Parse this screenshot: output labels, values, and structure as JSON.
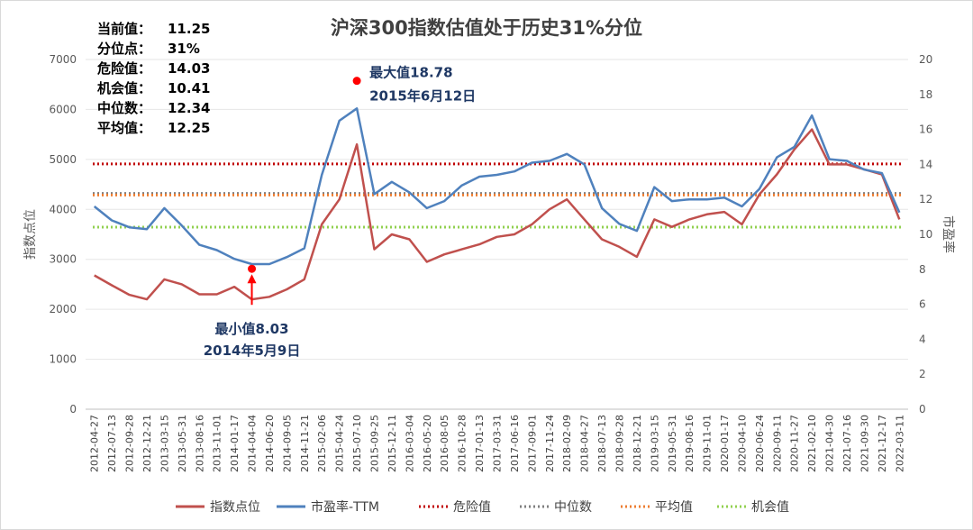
{
  "chart_data": {
    "type": "line",
    "title": "沪深300指数估值处于历史31%分位",
    "ylabel_left": "指数点位",
    "ylabel_right": "市盈率",
    "ylim_left": [
      0,
      7000
    ],
    "ylim_right": [
      0,
      20
    ],
    "yticks_left": [
      "0",
      "1000",
      "2000",
      "3000",
      "4000",
      "5000",
      "6000",
      "7000"
    ],
    "yticks_right": [
      "0",
      "2",
      "4",
      "6",
      "8",
      "10",
      "12",
      "14",
      "16",
      "18",
      "20"
    ],
    "xticks": [
      "2012-04-27",
      "2012-07-13",
      "2012-09-28",
      "2012-12-21",
      "2013-03-15",
      "2013-05-31",
      "2013-08-16",
      "2013-11-01",
      "2014-01-17",
      "2014-04-04",
      "2014-06-20",
      "2014-09-05",
      "2014-11-21",
      "2015-02-06",
      "2015-04-24",
      "2015-07-10",
      "2015-09-25",
      "2015-12-11",
      "2016-03-04",
      "2016-05-20",
      "2016-08-05",
      "2016-10-28",
      "2017-01-13",
      "2017-03-31",
      "2017-06-16",
      "2017-09-01",
      "2017-11-24",
      "2018-02-09",
      "2018-04-27",
      "2018-07-13",
      "2018-09-28",
      "2018-12-21",
      "2019-03-15",
      "2019-05-31",
      "2019-08-16",
      "2019-11-01",
      "2020-01-17",
      "2020-04-10",
      "2020-06-24",
      "2020-09-11",
      "2020-11-27",
      "2021-02-10",
      "2021-04-30",
      "2021-07-16",
      "2021-09-30",
      "2021-12-17",
      "2022-03-11"
    ],
    "stats": [
      {
        "label": "当前值：",
        "value": "11.25"
      },
      {
        "label": "分位点：",
        "value": "31%"
      },
      {
        "label": "危险值：",
        "value": "14.03"
      },
      {
        "label": "机会值：",
        "value": "10.41"
      },
      {
        "label": "中位数：",
        "value": "12.34"
      },
      {
        "label": "平均值：",
        "value": "12.25"
      }
    ],
    "annotations": {
      "max": {
        "label": "最大值18.78",
        "date": "2015年6月12日",
        "value": 18.78
      },
      "min": {
        "label": "最小值8.03",
        "date": "2014年5月9日",
        "value": 8.03
      }
    },
    "reference_lines": [
      {
        "name": "危险值",
        "value": 14.03,
        "color": "#c00000"
      },
      {
        "name": "中位数",
        "value": 12.34,
        "color": "#7f7f7f"
      },
      {
        "name": "平均值",
        "value": 12.25,
        "color": "#ed7d31"
      },
      {
        "name": "机会值",
        "value": 10.41,
        "color": "#92d050"
      }
    ],
    "series": [
      {
        "name": "指数点位",
        "axis": "left",
        "color": "#c0504d",
        "values": [
          2680,
          2480,
          2290,
          2200,
          2600,
          2500,
          2300,
          2300,
          2450,
          2200,
          2250,
          2400,
          2600,
          3700,
          4200,
          5300,
          3200,
          3500,
          3400,
          2950,
          3100,
          3200,
          3300,
          3450,
          3500,
          3700,
          4000,
          4200,
          3800,
          3400,
          3250,
          3050,
          3800,
          3650,
          3800,
          3900,
          3950,
          3700,
          4300,
          4700,
          5200,
          5600,
          4900,
          4900,
          4800,
          4700,
          3800
        ]
      },
      {
        "name": "市盈率-TTM",
        "axis": "right",
        "color": "#4f81bd",
        "values": [
          11.6,
          10.8,
          10.4,
          10.3,
          11.5,
          10.5,
          9.4,
          9.1,
          8.6,
          8.3,
          8.3,
          8.7,
          9.2,
          13.4,
          16.5,
          17.2,
          12.3,
          13.0,
          12.4,
          11.5,
          11.9,
          12.8,
          13.3,
          13.4,
          13.6,
          14.1,
          14.2,
          14.6,
          14.0,
          11.5,
          10.6,
          10.2,
          12.7,
          11.9,
          12.0,
          12.0,
          12.1,
          11.6,
          12.6,
          14.4,
          15.0,
          16.8,
          14.3,
          14.2,
          13.7,
          13.5,
          11.25
        ]
      }
    ],
    "legend": [
      "指数点位",
      "市盈率-TTM",
      "危险值",
      "中位数",
      "平均值",
      "机会值"
    ],
    "legend_position": "bottom"
  }
}
